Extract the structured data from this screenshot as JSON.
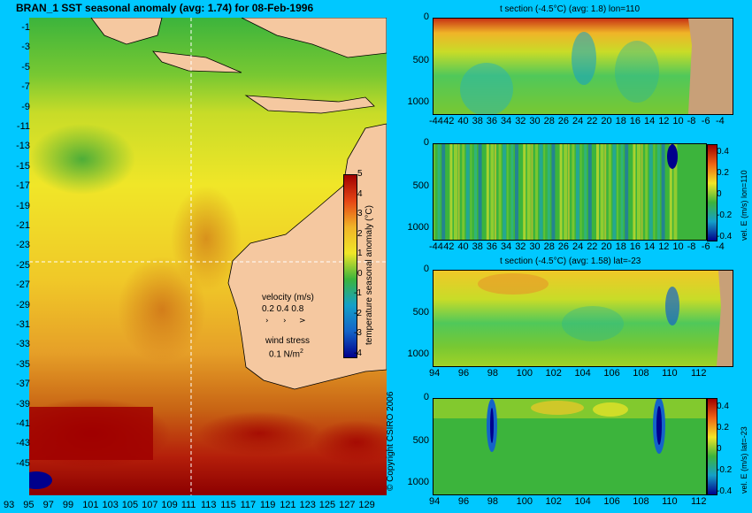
{
  "map": {
    "title": "BRAN_1 SST seasonal anomaly (avg: 1.74) for 08-Feb-1996",
    "y_ticks": [
      "-1",
      "-3",
      "-5",
      "-7",
      "-9",
      "-11",
      "-13",
      "-15",
      "-17",
      "-19",
      "-21",
      "-23",
      "-25",
      "-27",
      "-29",
      "-31",
      "-33",
      "-35",
      "-37",
      "-39",
      "-41",
      "-43",
      "-45"
    ],
    "x_ticks": [
      "93",
      "95",
      "97",
      "99",
      "101",
      "103",
      "105",
      "107",
      "109",
      "111",
      "113",
      "115",
      "117",
      "119",
      "121",
      "123",
      "125",
      "127",
      "129"
    ],
    "colorbar_ticks": [
      "5",
      "4",
      "3",
      "2",
      "1",
      "0",
      "-1",
      "-2",
      "-3",
      "-4"
    ],
    "colorbar_label": "temperature seasonal anomaly (°C)",
    "velocity_title": "velocity (m/s)",
    "velocity_scale": "0.2 0.4 0.8",
    "wind_title": "wind stress",
    "wind_value": "0.1 N/m",
    "wind_sup": "2",
    "copyright": "© Copyright CSIRO 2006"
  },
  "panels": {
    "p1": {
      "title": "t section (-4.5°C) (avg: 1.8) lon=110",
      "y_ticks": [
        "0",
        "500",
        "1000"
      ],
      "x_ticks": [
        "-44",
        "42",
        "40",
        "38",
        "36",
        "34",
        "32",
        "30",
        "28",
        "26",
        "24",
        "22",
        "20",
        "18",
        "16",
        "14",
        "12",
        "10",
        "-8",
        "-6",
        "-4"
      ]
    },
    "p2": {
      "y_ticks": [
        "0",
        "500",
        "1000"
      ],
      "x_ticks": [
        "-44",
        "42",
        "40",
        "38",
        "36",
        "34",
        "32",
        "30",
        "28",
        "26",
        "24",
        "22",
        "20",
        "18",
        "16",
        "14",
        "12",
        "10",
        "-8",
        "-6",
        "-4"
      ],
      "cb_ticks": [
        "0.4",
        "0.2",
        "0",
        "-0.2",
        "-0.4"
      ],
      "cb_label": "vel. E (m/s) lon=110"
    },
    "p3": {
      "title": "t section (-4.5°C) (avg: 1.58) lat=-23",
      "y_ticks": [
        "0",
        "500",
        "1000"
      ],
      "x_ticks": [
        "94",
        "96",
        "98",
        "100",
        "102",
        "104",
        "106",
        "108",
        "110",
        "112"
      ]
    },
    "p4": {
      "y_ticks": [
        "0",
        "500",
        "1000"
      ],
      "x_ticks": [
        "94",
        "96",
        "98",
        "100",
        "102",
        "104",
        "106",
        "108",
        "110",
        "112"
      ],
      "cb_ticks": [
        "0.4",
        "0.2",
        "0",
        "-0.2",
        "-0.4"
      ],
      "cb_label": "vel. E (m/s) lat=-23"
    }
  },
  "colors": {
    "background": "#00c8ff",
    "land": "#f5c8a0",
    "section_land": "#c8a078",
    "anomaly_high": "#a00000",
    "anomaly_low": "#00008c"
  }
}
